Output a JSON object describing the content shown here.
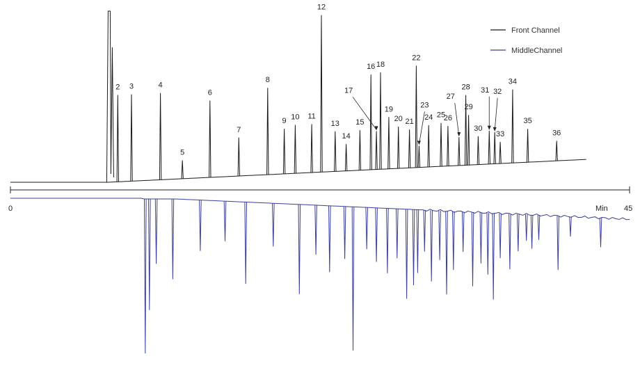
{
  "chart_data": {
    "type": "line",
    "x_start_label": "0",
    "x_end_label": "45",
    "x_unit_label": "Min",
    "xlim": [
      0,
      45
    ],
    "legend": {
      "placement": "top-right",
      "entries": [
        {
          "name": "Front Channel",
          "color": "#1a1a1a"
        },
        {
          "name": "MiddleChannel",
          "color": "#3a3f9a"
        }
      ]
    },
    "series": [
      {
        "name": "Front Channel",
        "color": "#1a1a1a",
        "direction": "up",
        "solvent_peak_time": 7.1,
        "peaks": [
          {
            "label": "2",
            "time": 7.8,
            "height": 0.52
          },
          {
            "label": "3",
            "time": 8.8,
            "height": 0.52
          },
          {
            "label": "4",
            "time": 10.9,
            "height": 0.52
          },
          {
            "label": "5",
            "time": 12.5,
            "height": 0.11
          },
          {
            "label": "6",
            "time": 14.5,
            "height": 0.46
          },
          {
            "label": "7",
            "time": 16.6,
            "height": 0.23
          },
          {
            "label": "8",
            "time": 18.7,
            "height": 0.52
          },
          {
            "label": "9",
            "time": 19.9,
            "height": 0.27
          },
          {
            "label": "10",
            "time": 20.7,
            "height": 0.29
          },
          {
            "label": "11",
            "time": 21.9,
            "height": 0.29
          },
          {
            "label": "12",
            "time": 22.6,
            "height": 0.94
          },
          {
            "label": "13",
            "time": 23.6,
            "height": 0.24
          },
          {
            "label": "14",
            "time": 24.4,
            "height": 0.16
          },
          {
            "label": "15",
            "time": 25.4,
            "height": 0.24
          },
          {
            "label": "16",
            "time": 26.2,
            "height": 0.57
          },
          {
            "label": "17",
            "time": 26.6,
            "height": 0.23
          },
          {
            "label": "18",
            "time": 26.9,
            "height": 0.58
          },
          {
            "label": "19",
            "time": 27.5,
            "height": 0.31
          },
          {
            "label": "20",
            "time": 28.2,
            "height": 0.25
          },
          {
            "label": "21",
            "time": 29.0,
            "height": 0.23
          },
          {
            "label": "22",
            "time": 29.5,
            "height": 0.61
          },
          {
            "label": "23",
            "time": 29.7,
            "height": 0.13
          },
          {
            "label": "24",
            "time": 30.4,
            "height": 0.25
          },
          {
            "label": "25",
            "time": 31.3,
            "height": 0.26
          },
          {
            "label": "26",
            "time": 31.8,
            "height": 0.24
          },
          {
            "label": "27",
            "time": 32.6,
            "height": 0.17
          },
          {
            "label": "28",
            "time": 33.1,
            "height": 0.42
          },
          {
            "label": "29",
            "time": 33.3,
            "height": 0.3
          },
          {
            "label": "30",
            "time": 34.0,
            "height": 0.17
          },
          {
            "label": "31",
            "time": 34.8,
            "height": 0.2
          },
          {
            "label": "32",
            "time": 35.2,
            "height": 0.19
          },
          {
            "label": "33",
            "time": 35.6,
            "height": 0.13
          },
          {
            "label": "34",
            "time": 36.5,
            "height": 0.44
          },
          {
            "label": "35",
            "time": 37.6,
            "height": 0.2
          },
          {
            "label": "36",
            "time": 39.7,
            "height": 0.12
          }
        ]
      },
      {
        "name": "MiddleChannel",
        "color": "#3a3f9a",
        "direction": "down",
        "peaks": [
          {
            "time": 9.8,
            "height": 1.0
          },
          {
            "time": 10.1,
            "height": 0.72
          },
          {
            "time": 10.6,
            "height": 0.42
          },
          {
            "time": 11.8,
            "height": 0.52
          },
          {
            "time": 13.8,
            "height": 0.33
          },
          {
            "time": 15.6,
            "height": 0.26
          },
          {
            "time": 17.1,
            "height": 0.53
          },
          {
            "time": 19.1,
            "height": 0.28
          },
          {
            "time": 21.0,
            "height": 0.58
          },
          {
            "time": 22.2,
            "height": 0.32
          },
          {
            "time": 23.2,
            "height": 0.43
          },
          {
            "time": 24.3,
            "height": 0.34
          },
          {
            "time": 24.9,
            "height": 0.93
          },
          {
            "time": 25.9,
            "height": 0.27
          },
          {
            "time": 26.6,
            "height": 0.35
          },
          {
            "time": 27.4,
            "height": 0.42
          },
          {
            "time": 28.1,
            "height": 0.32
          },
          {
            "time": 28.8,
            "height": 0.58
          },
          {
            "time": 29.3,
            "height": 0.49
          },
          {
            "time": 29.6,
            "height": 0.41
          },
          {
            "time": 30.1,
            "height": 0.27
          },
          {
            "time": 30.6,
            "height": 0.46
          },
          {
            "time": 31.2,
            "height": 0.32
          },
          {
            "time": 31.7,
            "height": 0.54
          },
          {
            "time": 32.2,
            "height": 0.38
          },
          {
            "time": 32.9,
            "height": 0.26
          },
          {
            "time": 33.6,
            "height": 0.48
          },
          {
            "time": 34.2,
            "height": 0.33
          },
          {
            "time": 34.7,
            "height": 0.4
          },
          {
            "time": 35.1,
            "height": 0.56
          },
          {
            "time": 35.6,
            "height": 0.29
          },
          {
            "time": 36.3,
            "height": 0.36
          },
          {
            "time": 36.9,
            "height": 0.24
          },
          {
            "time": 37.5,
            "height": 0.17
          },
          {
            "time": 37.9,
            "height": 0.22
          },
          {
            "time": 38.4,
            "height": 0.16
          },
          {
            "time": 39.8,
            "height": 0.35
          },
          {
            "time": 40.7,
            "height": 0.13
          },
          {
            "time": 42.9,
            "height": 0.19
          }
        ]
      }
    ]
  }
}
